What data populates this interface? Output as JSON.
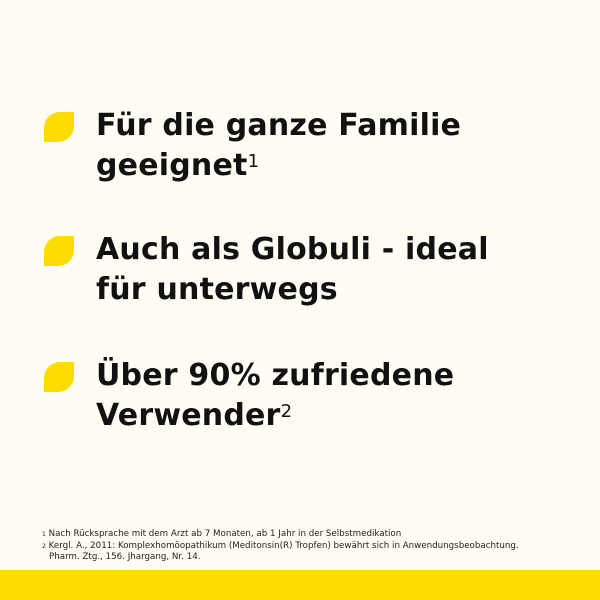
{
  "colors": {
    "accent": "#ffdc00",
    "background": "#fefcf3",
    "text": "#111111"
  },
  "bullets": [
    {
      "icon": "leaf-icon",
      "line1": "Für die ganze Familie",
      "line2": "geeignet",
      "sup": "1"
    },
    {
      "icon": "leaf-icon",
      "line1": "Auch als Globuli - ideal",
      "line2": "für unterwegs",
      "sup": ""
    },
    {
      "icon": "leaf-icon",
      "line1": "Über 90% zufriedene",
      "line2": "Verwender",
      "sup": "2"
    }
  ],
  "footnotes": [
    {
      "mark": "1",
      "text": "Nach Rücksprache mit dem Arzt ab 7 Monaten, ab 1 Jahr in der Selbstmedikation"
    },
    {
      "mark": "2",
      "text": "Kergl. A., 2011: Komplexhomöopathikum (Meditonsin(R) Tropfen) bewährt sich in Anwendungsbeobachtung.",
      "cont": "Pharm. Ztg., 156. Jhargang, Nr. 14."
    }
  ]
}
